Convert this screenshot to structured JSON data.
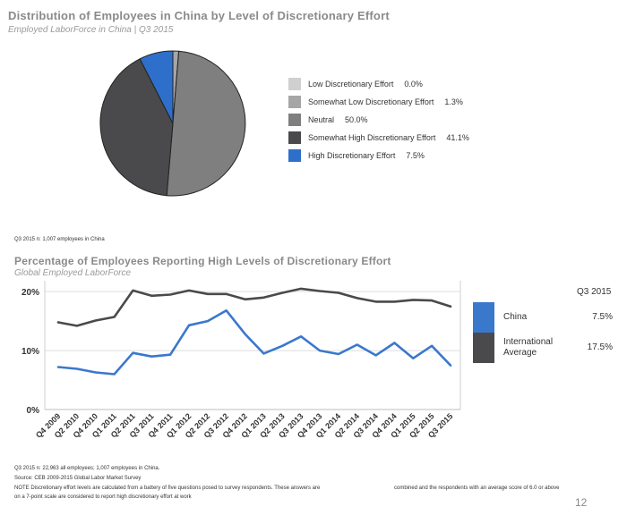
{
  "chart_data": [
    {
      "type": "pie",
      "title": "Distribution  of Employees in China by Level of Discretionary Effort",
      "subtitle": "Employed LaborForce in China | Q3 2015",
      "slices": [
        {
          "label": "Low Discretionary Effort",
          "value": 0.0,
          "value_text": "0.0%",
          "color": "#d0d0d0"
        },
        {
          "label": "Somewhat Low Discretionary Effort",
          "value": 1.3,
          "value_text": "1.3%",
          "color": "#a6a6a6"
        },
        {
          "label": "Neutral",
          "value": 50.0,
          "value_text": "50.0%",
          "color": "#7f7f7f"
        },
        {
          "label": "Somewhat High Discretionary Effort",
          "value": 41.1,
          "value_text": "41.1%",
          "color": "#4a4a4c"
        },
        {
          "label": "High Discretionary Effort",
          "value": 7.5,
          "value_text": "7.5%",
          "color": "#2f6fcc"
        }
      ],
      "legend_position": "right",
      "footnote": "Q3 2015 n: 1,007 employees  in China"
    },
    {
      "type": "line",
      "title": "Percentage of Employees Reporting High Levels of Discretionary Effort",
      "subtitle": "Global Employed LaborForce",
      "categories": [
        "Q4 2009",
        "Q2 2010",
        "Q4 2010",
        "Q1 2011",
        "Q2 2011",
        "Q3 2011",
        "Q4 2011",
        "Q1 2012",
        "Q2 2012",
        "Q3 2012",
        "Q4 2012",
        "Q1 2013",
        "Q2 2013",
        "Q3 2013",
        "Q4 2013",
        "Q1 2014",
        "Q2 2014",
        "Q3 2014",
        "Q4 2014",
        "Q1 2015",
        "Q2 2015",
        "Q3 2015"
      ],
      "series": [
        {
          "name": "China",
          "color": "#3a78cc",
          "value_text": "7.5%",
          "values": [
            7.2,
            6.9,
            6.3,
            6.0,
            9.6,
            9.0,
            9.3,
            14.3,
            15.0,
            16.8,
            12.8,
            9.5,
            10.8,
            12.4,
            10.0,
            9.4,
            11.0,
            9.2,
            11.3,
            8.7,
            10.8,
            7.5
          ]
        },
        {
          "name": "International Average",
          "color": "#4a4a4c",
          "value_text": "17.5%",
          "values": [
            14.8,
            14.2,
            15.1,
            15.7,
            20.2,
            19.3,
            19.5,
            20.2,
            19.6,
            19.6,
            18.7,
            19.0,
            19.8,
            20.5,
            20.1,
            19.8,
            18.9,
            18.3,
            18.3,
            18.6,
            18.5,
            17.5
          ]
        }
      ],
      "ylim": [
        0,
        22
      ],
      "yticks": [
        0,
        10,
        20
      ],
      "ytick_labels": [
        "0%",
        "10%",
        "20%"
      ],
      "grid": true,
      "legend_header": "Q3 2015",
      "legend_position": "right"
    }
  ],
  "footnotes": {
    "line1": "Q3 2015 n: 22,963 all employees;  1,007 employees  in China.",
    "line2": "Source: CEB 2009-2015  Global  Labor  Market Survey",
    "line3a": "NOTE Discretionary effort levels are calculated from a battery of five questions posed to survey respondents.  These answers are",
    "line3b": "combined and the respondents with an average score of 6.0 or above",
    "line4": "on a 7-point scale are considered to report high discretionary effort at work"
  },
  "page_number": "12"
}
